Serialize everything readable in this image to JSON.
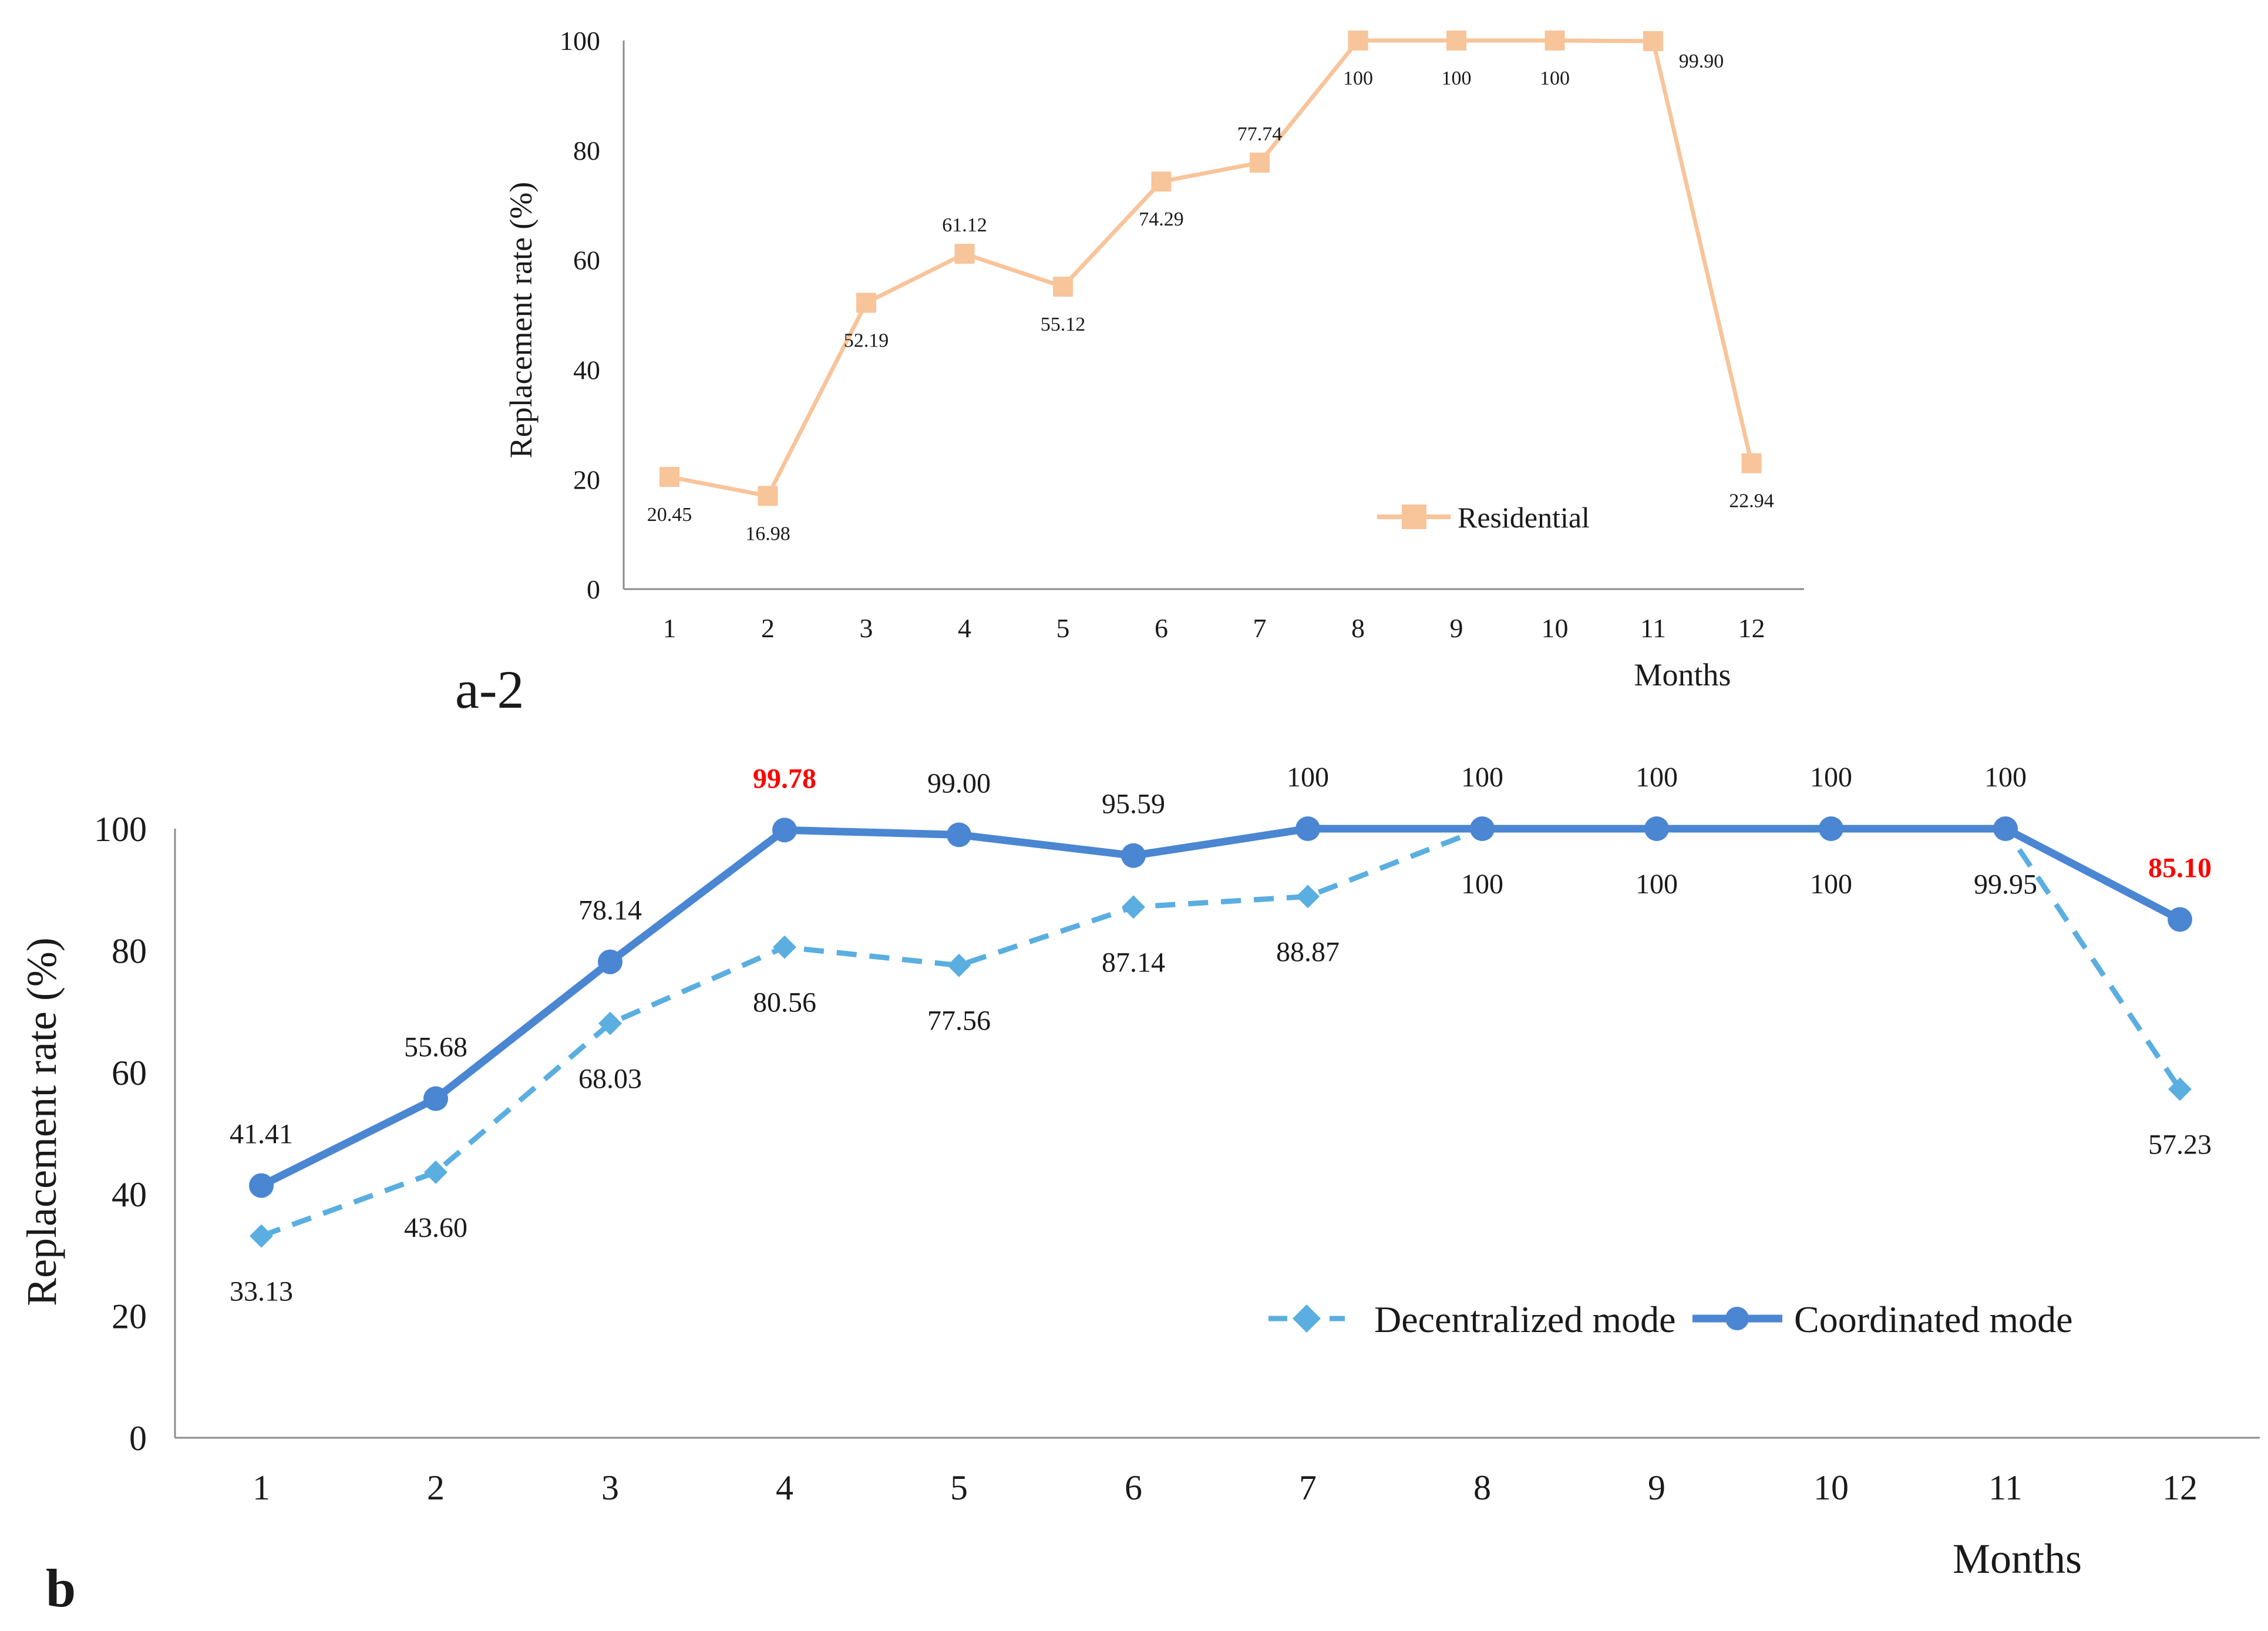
{
  "panel_labels": {
    "top": "a-2",
    "bottom": "b"
  },
  "chart_data": [
    {
      "type": "line",
      "panel": "a-2",
      "xlabel": "Months",
      "ylabel": "Replacement rate (%)",
      "categories": [
        "1",
        "2",
        "3",
        "4",
        "5",
        "6",
        "7",
        "8",
        "9",
        "10",
        "11",
        "12"
      ],
      "ylim": [
        0,
        100
      ],
      "yticks": [
        "0",
        "20",
        "40",
        "60",
        "80",
        "100"
      ],
      "grid": false,
      "legend_position": "bottom-right",
      "series": [
        {
          "name": "Residential",
          "values": [
            20.45,
            16.98,
            52.19,
            61.12,
            55.12,
            74.29,
            77.74,
            100,
            100,
            100,
            99.9,
            22.94
          ],
          "labels": [
            "20.45",
            "16.98",
            "52.19",
            "61.12",
            "55.12",
            "74.29",
            "77.74",
            "100",
            "100",
            "100",
            "99.90",
            "22.94"
          ],
          "color": "#F8C49A",
          "marker": "square"
        }
      ]
    },
    {
      "type": "line",
      "panel": "b",
      "xlabel": "Months",
      "ylabel": "Replacement rate (%)",
      "categories": [
        "1",
        "2",
        "3",
        "4",
        "5",
        "6",
        "7",
        "8",
        "9",
        "10",
        "11",
        "12"
      ],
      "ylim": [
        0,
        100
      ],
      "yticks": [
        "0",
        "20",
        "40",
        "60",
        "80",
        "100"
      ],
      "grid": false,
      "legend_position": "bottom-right",
      "series": [
        {
          "name": "Decentralized mode",
          "values": [
            33.13,
            43.6,
            68.03,
            80.56,
            77.56,
            87.14,
            88.87,
            100,
            100,
            100,
            99.95,
            57.23
          ],
          "labels": [
            "33.13",
            "43.60",
            "68.03",
            "80.56",
            "77.56",
            "87.14",
            "88.87",
            "100",
            "100",
            "100",
            "99.95",
            "57.23"
          ],
          "color": "#5AAEE0",
          "marker": "diamond",
          "dashed": true
        },
        {
          "name": "Coordinated mode",
          "values": [
            41.41,
            55.68,
            78.14,
            99.78,
            99.0,
            95.59,
            100,
            100,
            100,
            100,
            100,
            85.1
          ],
          "labels": [
            "41.41",
            "55.68",
            "78.14",
            "99.78",
            "99.00",
            "95.59",
            "100",
            "100",
            "100",
            "100",
            "100",
            "85.10"
          ],
          "highlight_indices": [
            3,
            11
          ],
          "highlight_color": "#FF0000",
          "color": "#4A86D2",
          "marker": "circle"
        }
      ]
    }
  ]
}
